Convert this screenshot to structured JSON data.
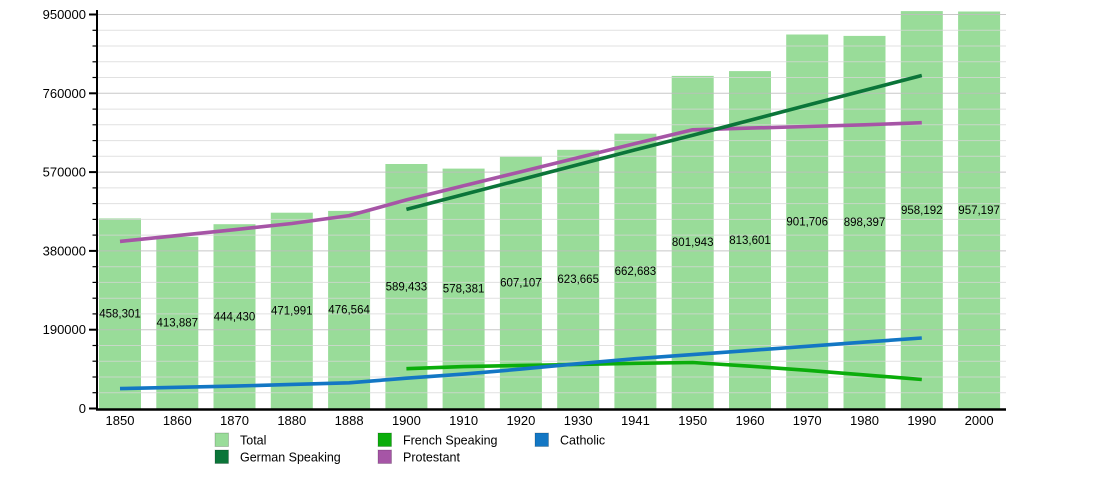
{
  "chart_data": {
    "type": "bar",
    "title": "",
    "xlabel": "",
    "ylabel": "",
    "categories": [
      "1850",
      "1860",
      "1870",
      "1880",
      "1888",
      "1900",
      "1910",
      "1920",
      "1930",
      "1941",
      "1950",
      "1960",
      "1970",
      "1980",
      "1990",
      "2000"
    ],
    "bar_series": {
      "name": "Total",
      "color": "#99DC99",
      "values": [
        458301,
        413887,
        444430,
        471991,
        476564,
        589433,
        578381,
        607107,
        623665,
        662683,
        801943,
        813601,
        901706,
        898397,
        958192,
        957197
      ],
      "labels": [
        "458,301",
        "413,887",
        "444,430",
        "471,991",
        "476,564",
        "589,433",
        "578,381",
        "607,107",
        "623,665",
        "662,683",
        "801,943",
        "813,601",
        "901,706",
        "898,397",
        "958,192",
        "957,197"
      ]
    },
    "line_series": [
      {
        "name": "Protestant",
        "color": "#A655A6",
        "start_index": 0,
        "values": [
          403000,
          417000,
          431000,
          446000,
          465000,
          503000,
          537000,
          571000,
          605000,
          639000,
          672000,
          676000,
          680000,
          684000,
          689000
        ]
      },
      {
        "name": "German Speaking",
        "color": "#0B7539",
        "start_index": 5,
        "values": [
          480000,
          516000,
          552000,
          588000,
          624000,
          659000,
          695000,
          731000,
          767000,
          803000
        ]
      },
      {
        "name": "French Speaking",
        "color": "#0BAD0B",
        "start_index": 5,
        "values": [
          96000,
          101000,
          104000,
          106000,
          109000,
          111000,
          102000,
          92000,
          81000,
          70000
        ]
      },
      {
        "name": "Catholic",
        "color": "#1377C4",
        "start_index": 0,
        "values": [
          48000,
          51000,
          54000,
          58000,
          62000,
          73000,
          83000,
          95000,
          108000,
          120000,
          130000,
          140000,
          150000,
          160000,
          170000
        ]
      }
    ],
    "y_axis": {
      "tick_labels": [
        "0",
        "190000",
        "380000",
        "570000",
        "760000",
        "950000"
      ],
      "tick_values": [
        0,
        190000,
        380000,
        570000,
        760000,
        950000
      ],
      "minor_step": 38000,
      "ylim": [
        0,
        950000
      ],
      "grid_horizontal": true,
      "grid_vertical": false
    },
    "legend": {
      "position": "bottom",
      "entries": [
        {
          "label": "Total",
          "color": "#99DC99"
        },
        {
          "label": "French Speaking",
          "color": "#0BAD0B"
        },
        {
          "label": "Catholic",
          "color": "#1377C4"
        },
        {
          "label": "German Speaking",
          "color": "#0B7539"
        },
        {
          "label": "Protestant",
          "color": "#A655A6"
        }
      ]
    }
  }
}
